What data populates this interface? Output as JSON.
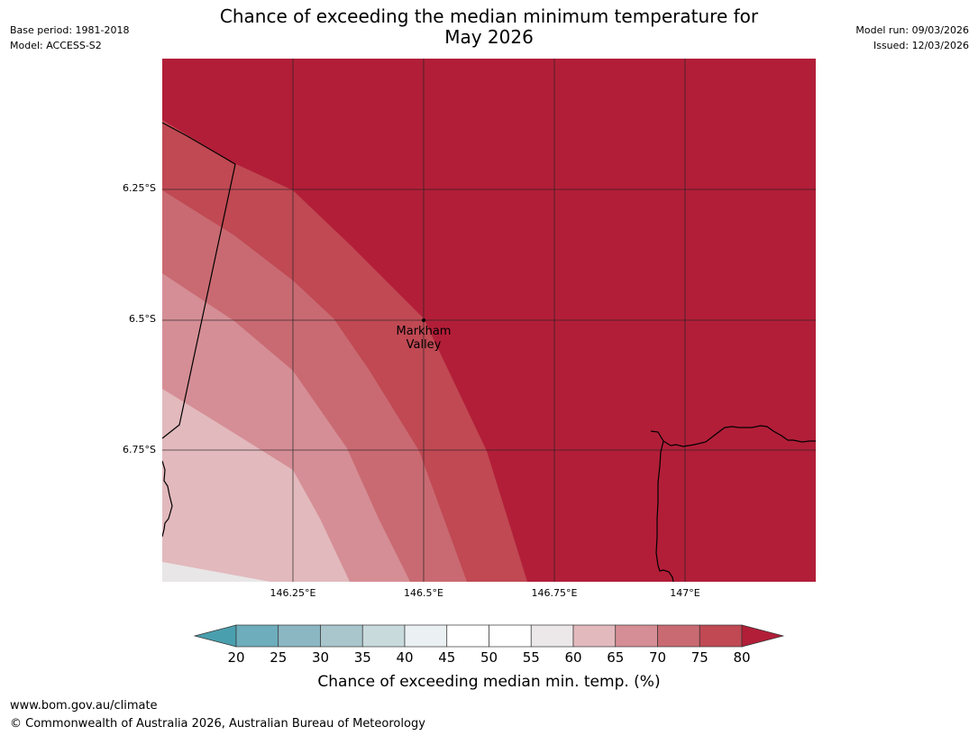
{
  "header": {
    "base_period": "Base period: 1981-2018",
    "model": "Model: ACCESS-S2",
    "model_run": "Model run: 09/03/2026",
    "issued": "Issued: 12/03/2026",
    "title_line1": "Chance of exceeding the median minimum temperature for",
    "title_line2": "May 2026"
  },
  "map": {
    "lat_labels": [
      "6.25°S",
      "6.5°S",
      "6.75°S"
    ],
    "lon_labels": [
      "146.25°E",
      "146.5°E",
      "146.75°E",
      "147°E"
    ],
    "place": {
      "name_line1": "Markham",
      "name_line2": "Valley"
    },
    "extent": {
      "lon_min": 146.0,
      "lon_max": 147.25,
      "lat_top": -6.0,
      "lat_bottom": -7.0
    },
    "band_colors": {
      "55-60": "#e8e6e7",
      "60-65": "#e2b9bd",
      "65-70": "#d58e95",
      "70-75": "#c96a72",
      "75-80": "#c04953",
      "80+": "#b21e38"
    }
  },
  "colorbar": {
    "ticks": [
      "20",
      "25",
      "30",
      "35",
      "40",
      "45",
      "50",
      "55",
      "60",
      "65",
      "70",
      "75",
      "80"
    ],
    "title": "Chance of exceeding median min. temp. (%)",
    "colors": {
      "below_20": "#4a9fae",
      "20-25": "#6eadbb",
      "25-30": "#8bb7c3",
      "30-35": "#a8c6cc",
      "35-40": "#c9dadd",
      "40-45": "#ebf1f3",
      "45-50": "#ffffff",
      "50-55": "#ffffff",
      "55-60": "#ece8e9",
      "60-65": "#e2b9bd",
      "65-70": "#d58e95",
      "70-75": "#c96a72",
      "75-80": "#c04953",
      "above_80": "#b21e38"
    }
  },
  "footer": {
    "url": "www.bom.gov.au/climate",
    "copyright": "© Commonwealth of Australia 2026, Australian Bureau of Meteorology"
  }
}
